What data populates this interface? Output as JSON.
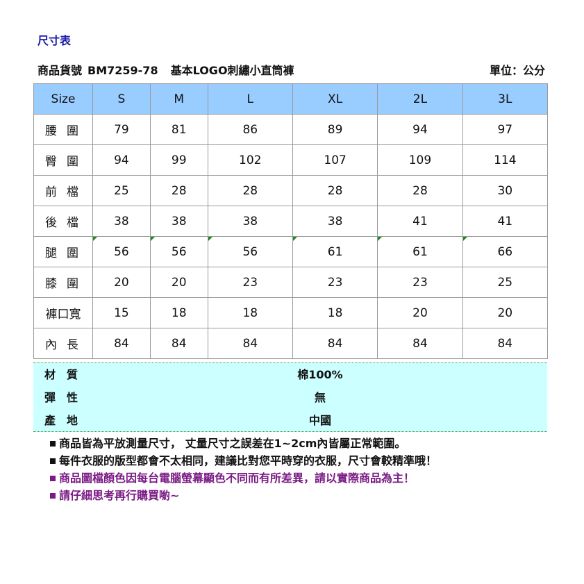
{
  "title": "尺寸表",
  "product": {
    "label": "商品貨號",
    "code": "BM7259-78",
    "name": "基本LOGO刺繡小直筒褲",
    "unit": "單位：公分"
  },
  "table": {
    "headers": [
      "Size",
      "S",
      "M",
      "L",
      "XL",
      "2L",
      "3L"
    ],
    "rows": [
      {
        "label": "腰圍",
        "values": [
          "79",
          "81",
          "86",
          "89",
          "94",
          "97"
        ]
      },
      {
        "label": "臀圍",
        "values": [
          "94",
          "99",
          "102",
          "107",
          "109",
          "114"
        ]
      },
      {
        "label": "前檔",
        "values": [
          "25",
          "28",
          "28",
          "28",
          "28",
          "30"
        ]
      },
      {
        "label": "後檔",
        "values": [
          "38",
          "38",
          "38",
          "38",
          "41",
          "41"
        ]
      },
      {
        "label": "腿圍",
        "values": [
          "56",
          "56",
          "56",
          "61",
          "61",
          "66"
        ]
      },
      {
        "label": "膝圍",
        "values": [
          "20",
          "20",
          "23",
          "23",
          "23",
          "25"
        ]
      },
      {
        "label": "褲口寬",
        "values": [
          "15",
          "18",
          "18",
          "18",
          "20",
          "20"
        ]
      },
      {
        "label": "內長",
        "values": [
          "84",
          "84",
          "84",
          "84",
          "84",
          "84"
        ]
      }
    ]
  },
  "info": [
    {
      "label": "材質",
      "value": "棉100%"
    },
    {
      "label": "彈性",
      "value": "無"
    },
    {
      "label": "產地",
      "value": "中國"
    }
  ],
  "notes": [
    {
      "text": "商品皆為平放測量尺寸， 丈量尺寸之誤差在1~2cm內皆屬正常範圍。",
      "color": "#111111"
    },
    {
      "text": "每件衣服的版型都會不太相同，建議比對您平時穿的衣服，尺寸會較精準哦！",
      "color": "#111111"
    },
    {
      "text": "商品圖檔顏色因每台電腦螢幕顯色不同而有所差異，請以實際商品為主！",
      "color": "#7a1a85"
    },
    {
      "text": "請仔細思考再行購買喲~",
      "color": "#7a1a85"
    }
  ],
  "colors": {
    "header_bg": "#99ccff",
    "info_bg": "#ccffff",
    "title": "#1a1aa6"
  }
}
